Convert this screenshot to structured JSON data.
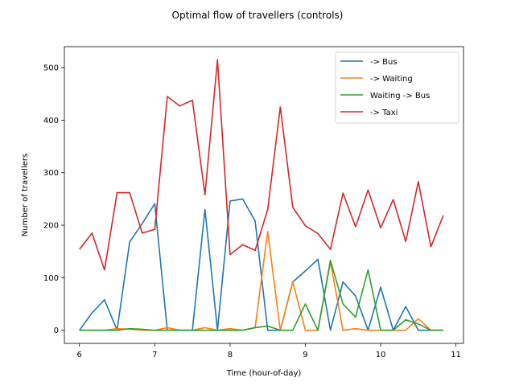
{
  "chart_data": {
    "type": "line",
    "title": "Optimal flow of travellers (controls)",
    "xlabel": "Time (hour-of-day)",
    "ylabel": "Number of travellers",
    "xlim": [
      5.8,
      11.1
    ],
    "ylim": [
      -25,
      540
    ],
    "xticks": [
      6,
      7,
      8,
      9,
      10,
      11
    ],
    "yticks": [
      0,
      100,
      200,
      300,
      400,
      500
    ],
    "grid": false,
    "legend": "top-right",
    "x": [
      6.0,
      6.167,
      6.333,
      6.5,
      6.667,
      6.833,
      7.0,
      7.167,
      7.333,
      7.5,
      7.667,
      7.833,
      8.0,
      8.167,
      8.333,
      8.5,
      8.667,
      8.833,
      9.0,
      9.167,
      9.333,
      9.5,
      9.667,
      9.833,
      10.0,
      10.167,
      10.333,
      10.5,
      10.667,
      10.833
    ],
    "series": [
      {
        "name": "-> Bus",
        "color": "#1f77b4",
        "values": [
          0,
          33,
          58,
          0,
          168,
          203,
          241,
          0,
          0,
          0,
          230,
          0,
          246,
          250,
          208,
          0,
          0,
          92,
          113,
          135,
          0,
          92,
          65,
          0,
          82,
          0,
          45,
          0,
          0,
          0
        ]
      },
      {
        "name": "-> Waiting",
        "color": "#ff7f0e",
        "values": [
          0,
          0,
          0,
          3,
          2,
          0,
          0,
          5,
          0,
          0,
          5,
          0,
          3,
          0,
          5,
          188,
          0,
          92,
          0,
          0,
          130,
          0,
          3,
          0,
          0,
          0,
          0,
          22,
          0,
          0
        ]
      },
      {
        "name": "Waiting -> Bus",
        "color": "#2ca02c",
        "values": [
          0,
          0,
          0,
          0,
          3,
          2,
          0,
          0,
          0,
          0,
          0,
          0,
          0,
          0,
          5,
          8,
          0,
          0,
          50,
          0,
          133,
          50,
          25,
          115,
          0,
          0,
          20,
          12,
          0,
          0
        ]
      },
      {
        "name": "-> Taxi",
        "color": "#d62728",
        "values": [
          154,
          185,
          115,
          262,
          262,
          185,
          192,
          445,
          427,
          438,
          258,
          515,
          144,
          163,
          152,
          230,
          425,
          234,
          199,
          184,
          154,
          261,
          197,
          267,
          195,
          249,
          169,
          283,
          159,
          219
        ]
      }
    ]
  }
}
